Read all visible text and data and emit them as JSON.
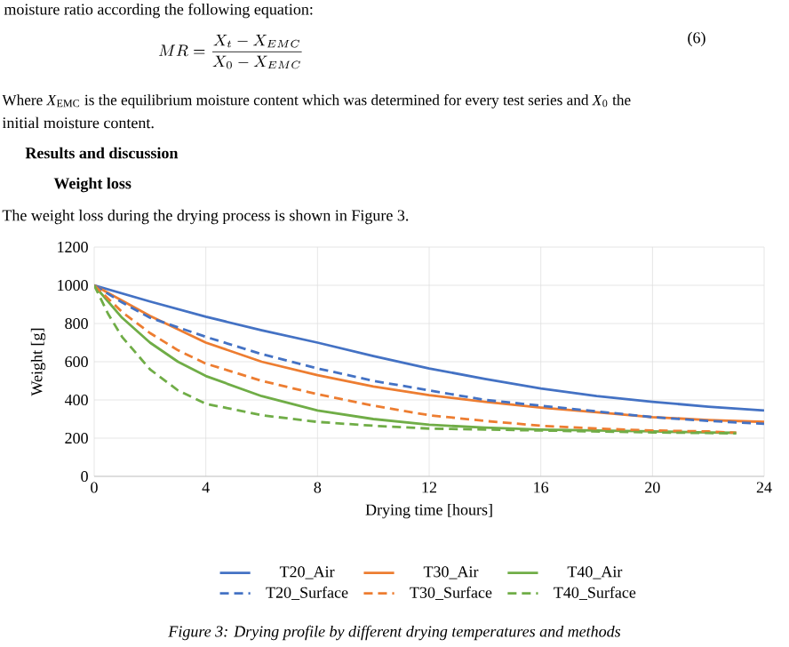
{
  "chart_data": {
    "type": "line",
    "xlabel": "Drying time [hours]",
    "ylabel": "Weight [g]",
    "xlim": [
      0,
      24
    ],
    "xticks": [
      0,
      4,
      8,
      12,
      16,
      20,
      24
    ],
    "ylim": [
      0,
      1200
    ],
    "yticks": [
      0,
      200,
      400,
      600,
      800,
      1000,
      1200
    ],
    "grid": true,
    "legend": "bottom",
    "marker": "none",
    "series": [
      {
        "name": "T20_Air",
        "color": "#4472c4",
        "line_style": "solid",
        "x": [
          0,
          2,
          4,
          6,
          8,
          10,
          12,
          14,
          16,
          18,
          20,
          22,
          24
        ],
        "values": [
          1000,
          915,
          835,
          765,
          700,
          630,
          565,
          510,
          460,
          420,
          390,
          365,
          345
        ]
      },
      {
        "name": "T30_Air",
        "color": "#ed7d31",
        "line_style": "solid",
        "x": [
          0,
          1,
          2,
          4,
          6,
          8,
          10,
          12,
          14,
          16,
          18,
          20,
          22,
          24
        ],
        "values": [
          1000,
          920,
          840,
          700,
          600,
          530,
          470,
          425,
          390,
          360,
          335,
          310,
          295,
          285
        ]
      },
      {
        "name": "T40_Air",
        "color": "#70ad47",
        "line_style": "solid",
        "x": [
          0,
          1,
          2,
          3,
          4,
          6,
          8,
          10,
          12,
          14,
          16,
          18,
          20,
          22,
          23
        ],
        "values": [
          1000,
          830,
          700,
          600,
          525,
          420,
          345,
          300,
          270,
          255,
          245,
          240,
          235,
          230,
          228
        ]
      },
      {
        "name": "T20_Surface",
        "color": "#4472c4",
        "line_style": "dashed",
        "x": [
          0,
          1,
          2,
          4,
          6,
          8,
          10,
          12,
          14,
          16,
          18,
          20,
          22,
          24
        ],
        "values": [
          1000,
          910,
          830,
          730,
          640,
          565,
          500,
          450,
          400,
          370,
          340,
          310,
          290,
          275
        ]
      },
      {
        "name": "T30_Surface",
        "color": "#ed7d31",
        "line_style": "dashed",
        "x": [
          0,
          1,
          2,
          3,
          4,
          6,
          8,
          10,
          12,
          14,
          16,
          18,
          20,
          22,
          23
        ],
        "values": [
          1000,
          860,
          750,
          660,
          590,
          500,
          430,
          370,
          320,
          290,
          265,
          250,
          240,
          235,
          228
        ]
      },
      {
        "name": "T40_Surface",
        "color": "#70ad47",
        "line_style": "dashed",
        "x": [
          0,
          0.5,
          1,
          2,
          3,
          4,
          6,
          8,
          10,
          12,
          14,
          16,
          18,
          20,
          23
        ],
        "values": [
          1000,
          850,
          730,
          560,
          450,
          380,
          320,
          285,
          265,
          250,
          245,
          240,
          235,
          230,
          225
        ]
      }
    ],
    "annotations": [
      "moisture ratio according the following equation:",
      "MR = \\frac{X_t - X_{EMC}}{X_0 - X_{EMC}}",
      "(6)",
      "Where *X*$_{EMC}$ is the equilibrium moisture content which was determined for every test series and *X*$_{0}$ the",
      "initial moisture content.",
      "Results and discussion",
      "Weight loss",
      "The weight loss during the drying process is shown in Figure 3.",
      "Figure 3: Drying profile by different drying temperatures and methods"
    ]
  }
}
